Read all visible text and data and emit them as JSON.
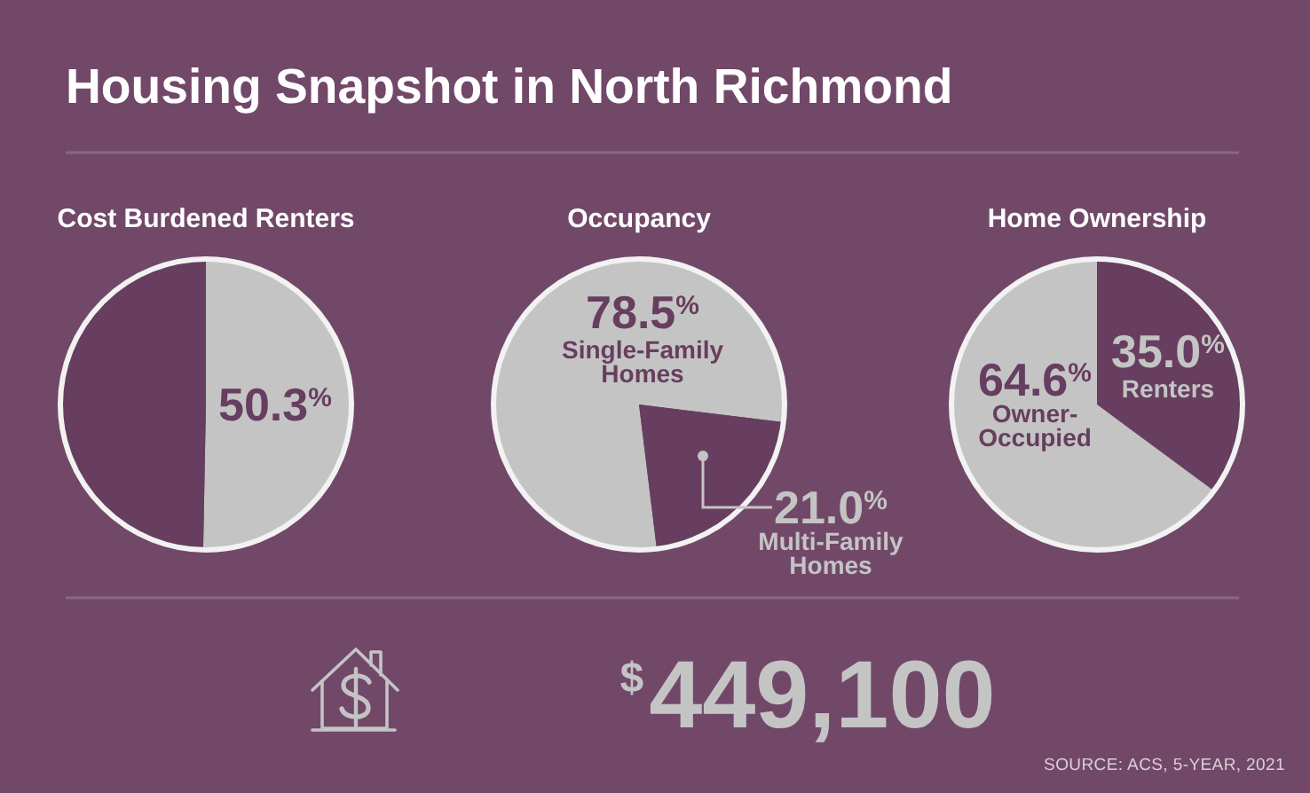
{
  "chart_data": [
    {
      "type": "other",
      "title": "Housing Snapshot in North Richmond",
      "annotations": [
        "$^{$}$449,100",
        "SOURCE: ACS, 5-YEAR, 2021"
      ]
    },
    {
      "type": "pie",
      "title": "Cost Burdened Renters",
      "categories": [
        null,
        null
      ],
      "values": [
        50.3,
        49.7
      ],
      "colors": [
        "#c4c4c4",
        "#673e5f"
      ],
      "value_labels": [
        "50.3$^{%}$",
        null
      ]
    },
    {
      "type": "pie",
      "title": "Occupancy",
      "categories": [
        "Single-Family Homes",
        "Multi-Family Homes"
      ],
      "values": [
        78.5,
        21.0
      ],
      "colors": [
        "#c4c4c4",
        "#673e5f"
      ],
      "value_labels": [
        "78.5$^{%}$",
        "21.0$^{%}$"
      ]
    },
    {
      "type": "pie",
      "title": "Home Ownership",
      "categories": [
        "Renters",
        "Owner-Occupied"
      ],
      "values": [
        35.0,
        64.6
      ],
      "colors": [
        "#673e5f",
        "#c4c4c4"
      ],
      "value_labels": [
        "35.0$^{%}$",
        "64.6$^{%}$"
      ]
    }
  ]
}
